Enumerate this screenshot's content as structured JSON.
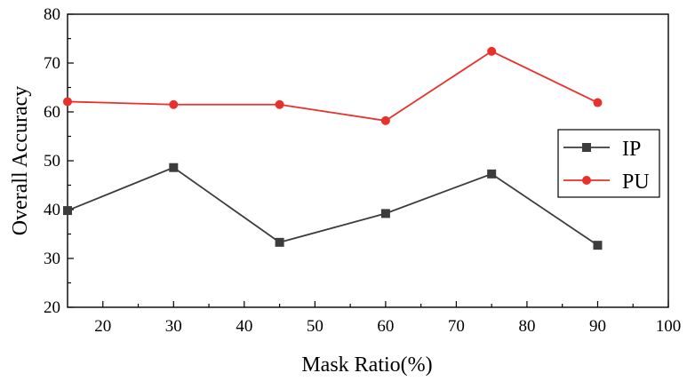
{
  "chart_data": {
    "type": "line",
    "x": [
      15,
      30,
      45,
      60,
      75,
      90
    ],
    "series": [
      {
        "name": "IP",
        "values": [
          39.8,
          48.6,
          33.3,
          39.2,
          47.3,
          32.7
        ],
        "color": "#3c3c3c",
        "marker": "square"
      },
      {
        "name": "PU",
        "values": [
          62.1,
          61.5,
          61.5,
          58.2,
          72.4,
          61.9
        ],
        "color": "#e8302c",
        "marker": "circle"
      }
    ],
    "xlabel": "Mask Ratio(%)",
    "ylabel": "Overall Accuracy",
    "xlim": [
      15,
      100
    ],
    "ylim": [
      20,
      80
    ],
    "xticks": [
      20,
      30,
      40,
      50,
      60,
      70,
      80,
      90,
      100
    ],
    "yticks": [
      20,
      30,
      40,
      50,
      60,
      70,
      80
    ],
    "grid": false,
    "legend_position": "right"
  }
}
